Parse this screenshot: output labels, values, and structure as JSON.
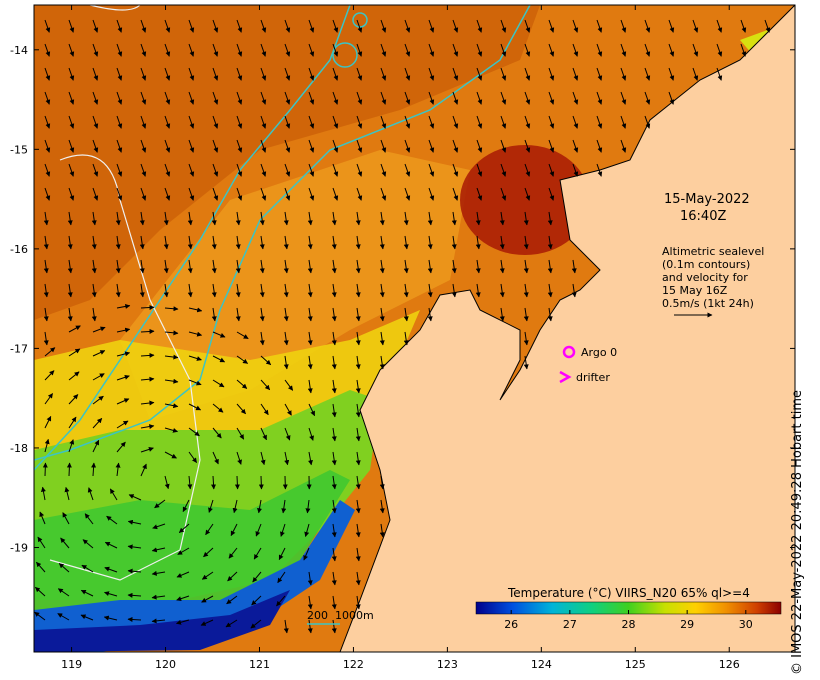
{
  "map": {
    "lon_range": [
      118.6,
      126.7
    ],
    "lat_range": [
      -20.05,
      -13.55
    ],
    "lon_ticks": [
      119,
      120,
      121,
      122,
      123,
      124,
      125,
      126
    ],
    "lat_ticks": [
      -14,
      -15,
      -16,
      -17,
      -18,
      -19
    ],
    "lon_tick_labels": [
      "119",
      "120",
      "121",
      "122",
      "123",
      "124",
      "125",
      "126"
    ],
    "lat_tick_labels": [
      "-14",
      "-15",
      "-16",
      "-17",
      "-18",
      "-19"
    ]
  },
  "annotations": {
    "date": "15-May-2022",
    "time": "16:40Z",
    "legend_line1": "Altimetric sealevel",
    "legend_line2": "(0.1m contours)",
    "legend_line3": "and velocity for",
    "legend_line4": "15 May 16Z",
    "legend_line5": "0.5m/s (1kt 24h)",
    "argo_label": "Argo 0",
    "drifter_label": "drifter",
    "depth_label": "200  1000m",
    "credit": "© IMOS 22-May-2022 20:49:28 Hobart time"
  },
  "colorbar": {
    "title": "Temperature (°C) VIIRS_N20 65% ql>=4",
    "range": [
      25.4,
      30.6
    ],
    "ticks": [
      "26",
      "27",
      "28",
      "29",
      "30"
    ],
    "tick_values": [
      26,
      27,
      28,
      29,
      30
    ]
  },
  "colors": {
    "land": "#fdcf9f",
    "contour_depth": "#3cc4c4",
    "contour_sealevel": "#f0f0f0",
    "argo": "#ff00ff",
    "drifter": "#ff00ff"
  }
}
